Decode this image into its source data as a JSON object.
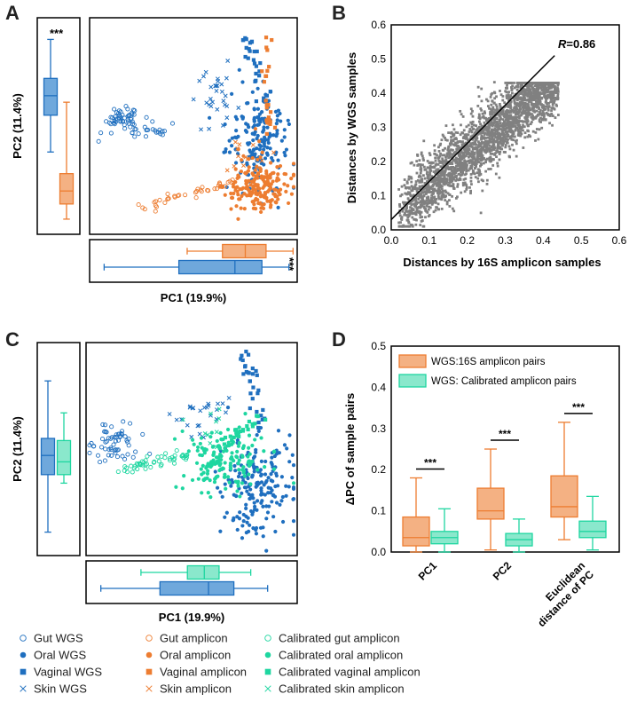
{
  "colors": {
    "wgs": "#1f6fbf",
    "amplicon": "#ed7d31",
    "calibrated": "#1ed6a0",
    "wgs_box_fill": "#6fa8dc",
    "amp_box_fill": "#f4b183",
    "cal_box_fill": "#8ae8cc",
    "scatter_gray": "#808080"
  },
  "panels": {
    "A": "A",
    "B": "B",
    "C": "C",
    "D": "D"
  },
  "chart_data": [
    {
      "id": "A",
      "type": "scatter",
      "title": "",
      "xlabel": "PC1 (19.9%)",
      "ylabel": "PC2 (11.4%)",
      "significance_y": "***",
      "significance_x": "***",
      "groups_present": [
        "WGS",
        "16S amplicon"
      ],
      "pc2_boxplots": [
        {
          "group": "WGS",
          "q1": 0.55,
          "median": 0.64,
          "q3": 0.72,
          "min": 0.38,
          "max": 0.9
        },
        {
          "group": "Amplicon",
          "q1": 0.14,
          "median": 0.2,
          "q3": 0.28,
          "min": 0.07,
          "max": 0.61
        }
      ],
      "pc1_boxplots": [
        {
          "group": "Amplicon",
          "q1": 0.64,
          "median": 0.75,
          "q3": 0.85,
          "min": 0.47,
          "max": 0.98
        },
        {
          "group": "WGS",
          "q1": 0.43,
          "median": 0.7,
          "q3": 0.83,
          "min": 0.07,
          "max": 0.96
        }
      ]
    },
    {
      "id": "B",
      "type": "scatter",
      "title": "",
      "xlabel": "Distances by 16S amplicon samples",
      "ylabel": "Distances by WGS samples",
      "xlim": [
        0,
        0.6
      ],
      "ylim": [
        0,
        0.6
      ],
      "x_ticks": [
        "0.0",
        "0.1",
        "0.2",
        "0.3",
        "0.4",
        "0.5",
        "0.6"
      ],
      "y_ticks": [
        "0.0",
        "0.1",
        "0.2",
        "0.3",
        "0.4",
        "0.5",
        "0.6"
      ],
      "annotation_label": "R",
      "annotation_value": "=0.86",
      "fit_line": {
        "x": [
          0.0,
          0.43
        ],
        "y": [
          0.03,
          0.51
        ]
      }
    },
    {
      "id": "C",
      "type": "scatter",
      "title": "",
      "xlabel": "PC1 (19.9%)",
      "ylabel": "PC2 (11.4%)",
      "groups_present": [
        "WGS",
        "Calibrated amplicon"
      ],
      "pc2_boxplots": [
        {
          "group": "WGS",
          "q1": 0.38,
          "median": 0.47,
          "q3": 0.55,
          "min": 0.11,
          "max": 0.82
        },
        {
          "group": "Calibrated",
          "q1": 0.38,
          "median": 0.44,
          "q3": 0.54,
          "min": 0.34,
          "max": 0.67
        }
      ],
      "pc1_boxplots": [
        {
          "group": "Calibrated",
          "q1": 0.48,
          "median": 0.56,
          "q3": 0.63,
          "min": 0.26,
          "max": 0.78
        },
        {
          "group": "WGS",
          "q1": 0.35,
          "median": 0.58,
          "q3": 0.7,
          "min": 0.07,
          "max": 0.86
        }
      ]
    },
    {
      "id": "D",
      "type": "bar",
      "title": "",
      "xlabel": "",
      "ylabel": "ΔPC of sample pairs",
      "ylim": [
        0,
        0.5
      ],
      "y_ticks": [
        "0.0",
        "0.1",
        "0.2",
        "0.3",
        "0.4",
        "0.5"
      ],
      "categories": [
        "PC1",
        "PC2",
        "Euclidean distance of PC"
      ],
      "category_lines": [
        [
          "PC1"
        ],
        [
          "PC2"
        ],
        [
          "Euclidean",
          "distance of PC"
        ]
      ],
      "legend": [
        "WGS:16S amplicon pairs",
        "WGS: Calibrated amplicon pairs"
      ],
      "significance": [
        "***",
        "***",
        "***"
      ],
      "series": [
        {
          "name": "WGS:16S amplicon pairs",
          "boxes": [
            {
              "min": 0.0,
              "q1": 0.015,
              "median": 0.035,
              "q3": 0.085,
              "max": 0.18
            },
            {
              "min": 0.005,
              "q1": 0.08,
              "median": 0.1,
              "q3": 0.155,
              "max": 0.25
            },
            {
              "min": 0.03,
              "q1": 0.085,
              "median": 0.11,
              "q3": 0.185,
              "max": 0.315
            }
          ]
        },
        {
          "name": "WGS: Calibrated amplicon pairs",
          "boxes": [
            {
              "min": 0.0,
              "q1": 0.02,
              "median": 0.035,
              "q3": 0.05,
              "max": 0.105
            },
            {
              "min": 0.0,
              "q1": 0.015,
              "median": 0.03,
              "q3": 0.045,
              "max": 0.08
            },
            {
              "min": 0.005,
              "q1": 0.035,
              "median": 0.05,
              "q3": 0.075,
              "max": 0.135
            }
          ]
        }
      ]
    }
  ],
  "legend": {
    "items": [
      {
        "label": "Gut WGS",
        "marker": "circle-open",
        "group": "wgs"
      },
      {
        "label": "Oral WGS",
        "marker": "circle",
        "group": "wgs"
      },
      {
        "label": "Vaginal WGS",
        "marker": "square",
        "group": "wgs"
      },
      {
        "label": "Skin WGS",
        "marker": "x",
        "group": "wgs"
      },
      {
        "label": "Gut amplicon",
        "marker": "circle-open",
        "group": "amplicon"
      },
      {
        "label": "Oral amplicon",
        "marker": "circle",
        "group": "amplicon"
      },
      {
        "label": "Vaginal amplicon",
        "marker": "square",
        "group": "amplicon"
      },
      {
        "label": "Skin amplicon",
        "marker": "x",
        "group": "amplicon"
      },
      {
        "label": "Calibrated gut amplicon",
        "marker": "circle-open",
        "group": "calibrated"
      },
      {
        "label": "Calibrated oral amplicon",
        "marker": "circle",
        "group": "calibrated"
      },
      {
        "label": "Calibrated vaginal amplicon",
        "marker": "square",
        "group": "calibrated"
      },
      {
        "label": "Calibrated skin amplicon",
        "marker": "x",
        "group": "calibrated"
      }
    ]
  }
}
